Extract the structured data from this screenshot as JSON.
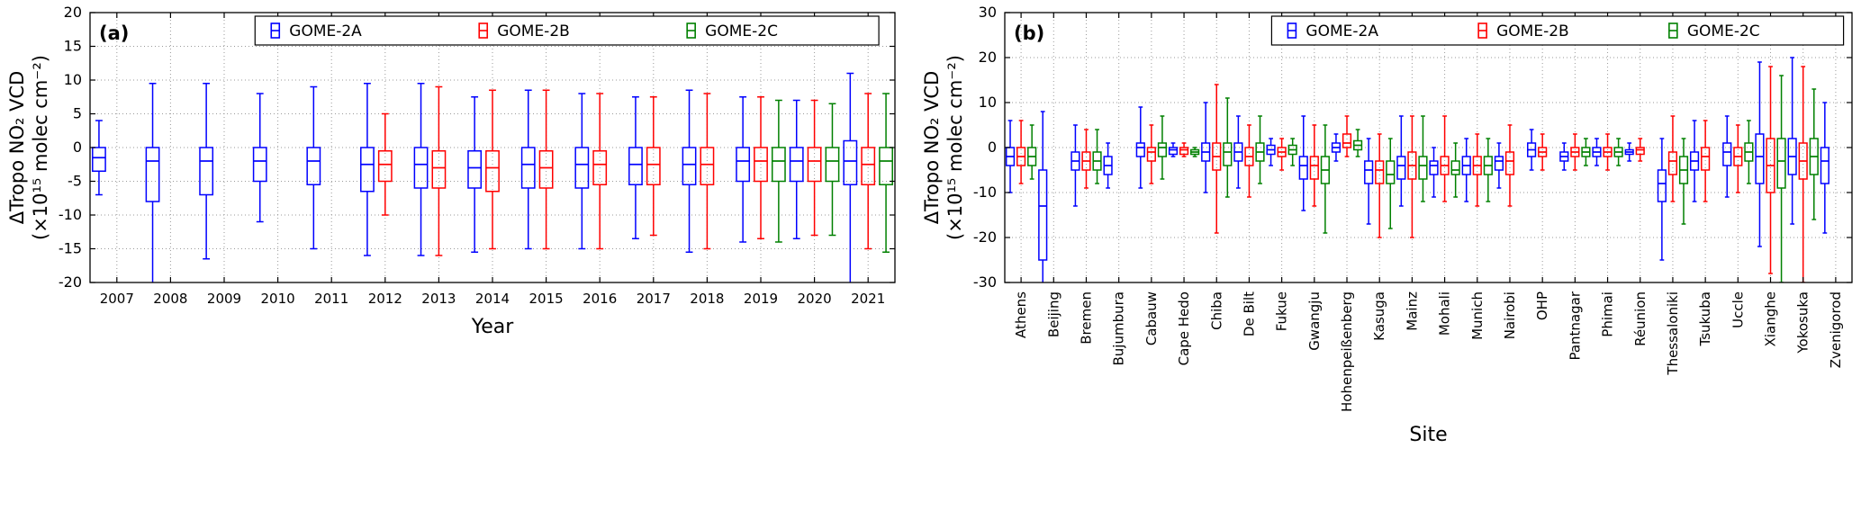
{
  "figure": {
    "background": "#ffffff",
    "panel_labels": [
      "(a)",
      "(b)"
    ]
  },
  "chart_data": [
    {
      "type": "box",
      "panel_label": "(a)",
      "xlabel": "Year",
      "ylabel_lines": [
        "ΔTropo NO₂ VCD",
        "(×10¹⁵ molec cm⁻²)"
      ],
      "ylim": [
        -20,
        20
      ],
      "yticks": [
        -20,
        -15,
        -10,
        -5,
        0,
        5,
        10,
        15,
        20
      ],
      "grid": true,
      "legend_position": "top",
      "values_order": "[whisker_low, q1, median, q3, whisker_high]",
      "categories": [
        "2007",
        "2008",
        "2009",
        "2010",
        "2011",
        "2012",
        "2013",
        "2014",
        "2015",
        "2016",
        "2017",
        "2018",
        "2019",
        "2020",
        "2021"
      ],
      "series": [
        {
          "name": "GOME-2A",
          "color": "#0000ff",
          "boxes": [
            [
              -7,
              -3.5,
              -1.5,
              0,
              4
            ],
            [
              -21,
              -8,
              -2,
              0,
              9.5
            ],
            [
              -16.5,
              -7,
              -2,
              0,
              9.5
            ],
            [
              -11,
              -5,
              -2,
              0,
              8
            ],
            [
              -15,
              -5.5,
              -2,
              0,
              9
            ],
            [
              -16,
              -6.5,
              -2.5,
              0,
              9.5
            ],
            [
              -16,
              -6,
              -2.5,
              0,
              9.5
            ],
            [
              -15.5,
              -6,
              -3,
              -0.5,
              7.5
            ],
            [
              -15,
              -6,
              -2.5,
              0,
              8.5
            ],
            [
              -15,
              -6,
              -2.5,
              0,
              8
            ],
            [
              -13.5,
              -5.5,
              -2.5,
              0,
              7.5
            ],
            [
              -15.5,
              -5.5,
              -2.5,
              0,
              8.5
            ],
            [
              -14,
              -5,
              -2,
              0,
              7.5
            ],
            [
              -13.5,
              -5,
              -2,
              0,
              7
            ],
            [
              -20.5,
              -5.5,
              -2,
              1,
              11
            ]
          ]
        },
        {
          "name": "GOME-2B",
          "color": "#ff0000",
          "boxes": [
            null,
            null,
            null,
            null,
            null,
            [
              -10,
              -5,
              -2.5,
              -0.5,
              5
            ],
            [
              -16,
              -6,
              -3,
              -0.5,
              9
            ],
            [
              -15,
              -6.5,
              -3,
              -0.5,
              8.5
            ],
            [
              -15,
              -6,
              -3,
              -0.5,
              8.5
            ],
            [
              -15,
              -5.5,
              -2.5,
              -0.5,
              8
            ],
            [
              -13,
              -5.5,
              -2.5,
              0,
              7.5
            ],
            [
              -15,
              -5.5,
              -2.5,
              0,
              8
            ],
            [
              -13.5,
              -5,
              -2,
              0,
              7.5
            ],
            [
              -13,
              -5,
              -2,
              0,
              7
            ],
            [
              -15,
              -5.5,
              -2.5,
              0,
              8
            ]
          ]
        },
        {
          "name": "GOME-2C",
          "color": "#008000",
          "boxes": [
            null,
            null,
            null,
            null,
            null,
            null,
            null,
            null,
            null,
            null,
            null,
            null,
            [
              -14,
              -5,
              -2,
              0,
              7
            ],
            [
              -13,
              -5,
              -2,
              0,
              6.5
            ],
            [
              -15.5,
              -5.5,
              -2,
              0,
              8
            ]
          ]
        }
      ]
    },
    {
      "type": "box",
      "panel_label": "(b)",
      "xlabel": "Site",
      "ylabel_lines": [
        "ΔTropo NO₂ VCD",
        "(×10¹⁵ molec cm⁻²)"
      ],
      "ylim": [
        -30,
        30
      ],
      "yticks": [
        -30,
        -20,
        -10,
        0,
        10,
        20,
        30
      ],
      "grid": true,
      "legend_position": "top",
      "values_order": "[whisker_low, q1, median, q3, whisker_high]",
      "categories": [
        "Athens",
        "Beijing",
        "Bremen",
        "Bujumbura",
        "Cabauw",
        "Cape Hedo",
        "Chiba",
        "De Bilt",
        "Fukue",
        "Gwangju",
        "Hohenpeißenberg",
        "Kasuga",
        "Mainz",
        "Mohali",
        "Munich",
        "Nairobi",
        "OHP",
        "Pantnagar",
        "Phimai",
        "Réunion",
        "Thessaloniki",
        "Tsukuba",
        "Uccle",
        "Xianghe",
        "Yokosuka",
        "Zvenigorod"
      ],
      "series": [
        {
          "name": "GOME-2A",
          "color": "#0000ff",
          "boxes": [
            [
              -10,
              -4,
              -2,
              0,
              6
            ],
            [
              -33,
              -25,
              -13,
              -5,
              8
            ],
            [
              -13,
              -5,
              -3,
              -1,
              5
            ],
            [
              -9,
              -6,
              -4,
              -2,
              1
            ],
            [
              -9,
              -2,
              0,
              1,
              9
            ],
            [
              -2,
              -1.5,
              -0.5,
              0,
              1
            ],
            [
              -10,
              -3,
              -1,
              1,
              10
            ],
            [
              -9,
              -3,
              -1,
              1,
              7
            ],
            [
              -4,
              -1.5,
              -0.5,
              0.5,
              2
            ],
            [
              -14,
              -7,
              -4,
              -2,
              7
            ],
            [
              -3,
              -1,
              0,
              1,
              3
            ],
            [
              -17,
              -8,
              -5,
              -3,
              2
            ],
            [
              -13,
              -7,
              -4,
              -2,
              7
            ],
            [
              -11,
              -6,
              -4,
              -3,
              0
            ],
            [
              -12,
              -6,
              -4,
              -2,
              2
            ],
            [
              -9,
              -5,
              -3,
              -2,
              1
            ],
            [
              -5,
              -2,
              -0.5,
              1,
              4
            ],
            [
              -5,
              -3,
              -2,
              -1,
              1
            ],
            [
              -4,
              -2,
              -1,
              0,
              2
            ],
            [
              -3,
              -1.5,
              -1,
              -0.5,
              1
            ],
            [
              -25,
              -12,
              -8,
              -5,
              2
            ],
            [
              -12,
              -5,
              -3,
              -1,
              6
            ],
            [
              -11,
              -4,
              -1,
              1,
              7
            ],
            [
              -22,
              -8,
              -2,
              3,
              19
            ],
            [
              -17,
              -6,
              -2,
              2,
              20
            ],
            [
              -19,
              -8,
              -3,
              0,
              10
            ]
          ]
        },
        {
          "name": "GOME-2B",
          "color": "#ff0000",
          "boxes": [
            [
              -8,
              -4,
              -2,
              0,
              6
            ],
            null,
            [
              -9,
              -5,
              -3,
              -1,
              4
            ],
            null,
            [
              -8,
              -3,
              -1,
              0,
              5
            ],
            [
              -2,
              -1.5,
              -0.5,
              0,
              1
            ],
            [
              -19,
              -5,
              -2,
              1,
              14
            ],
            [
              -11,
              -4,
              -2,
              0,
              5
            ],
            [
              -5,
              -2,
              -1,
              0,
              2
            ],
            [
              -13,
              -7,
              -4,
              -2,
              5
            ],
            [
              -2,
              0,
              1,
              3,
              7
            ],
            [
              -20,
              -8,
              -5,
              -3,
              3
            ],
            [
              -20,
              -7,
              -4,
              -1,
              7
            ],
            [
              -12,
              -6,
              -4,
              -2,
              7
            ],
            [
              -13,
              -6,
              -4,
              -2,
              3
            ],
            [
              -13,
              -6,
              -3,
              -1,
              5
            ],
            [
              -5,
              -2,
              -1,
              0,
              3
            ],
            [
              -5,
              -2,
              -1,
              0,
              3
            ],
            [
              -5,
              -2,
              -1,
              0,
              3
            ],
            [
              -3,
              -1.5,
              -0.5,
              0,
              2
            ],
            [
              -12,
              -6,
              -3,
              -1,
              7
            ],
            [
              -12,
              -5,
              -2,
              0,
              6
            ],
            [
              -10,
              -4,
              -2,
              0,
              5
            ],
            [
              -28,
              -10,
              -4,
              2,
              18
            ],
            [
              -30,
              -7,
              -3,
              1,
              18
            ],
            null
          ]
        },
        {
          "name": "GOME-2C",
          "color": "#008000",
          "boxes": [
            [
              -7,
              -4,
              -2,
              0,
              5
            ],
            null,
            [
              -8,
              -5,
              -3,
              -1,
              4
            ],
            null,
            [
              -7,
              -2,
              0,
              1,
              7
            ],
            [
              -2,
              -1.5,
              -1,
              -0.5,
              0
            ],
            [
              -11,
              -4,
              -1,
              1,
              11
            ],
            [
              -8,
              -3,
              -1,
              1,
              7
            ],
            [
              -4,
              -1.5,
              -0.5,
              0.5,
              2
            ],
            [
              -19,
              -8,
              -5,
              -2,
              5
            ],
            [
              -2,
              -0.5,
              0.5,
              1.5,
              4
            ],
            [
              -18,
              -8,
              -6,
              -3,
              2
            ],
            [
              -12,
              -7,
              -4,
              -2,
              7
            ],
            [
              -11,
              -6,
              -5,
              -3,
              1
            ],
            [
              -12,
              -6,
              -4,
              -2,
              2
            ],
            null,
            null,
            [
              -4,
              -2,
              -1,
              0,
              2
            ],
            [
              -4,
              -2,
              -1,
              0,
              2
            ],
            null,
            [
              -17,
              -8,
              -5,
              -2,
              2
            ],
            null,
            [
              -8,
              -3,
              -1,
              1,
              6
            ],
            [
              -30,
              -9,
              -3,
              2,
              16
            ],
            [
              -16,
              -6,
              -2,
              2,
              13
            ],
            null
          ]
        }
      ]
    }
  ]
}
